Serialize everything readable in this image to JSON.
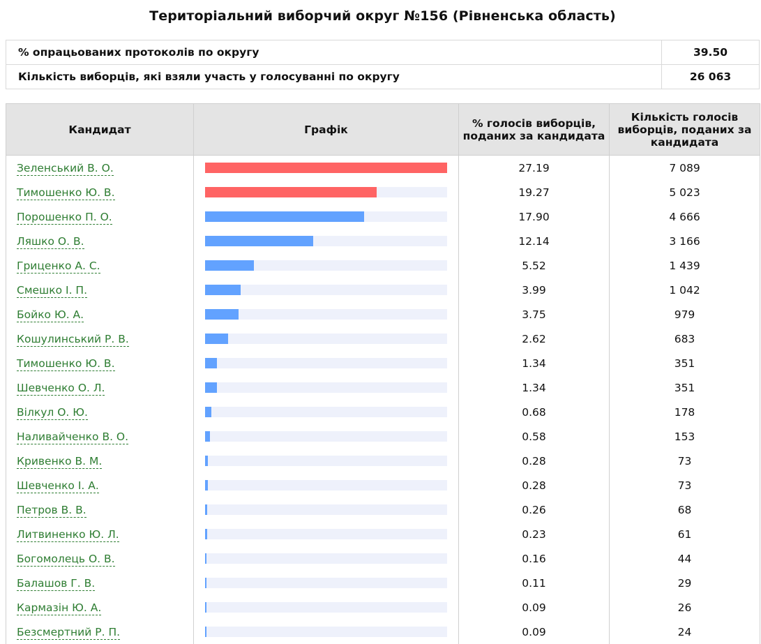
{
  "title": "Територіальний виборчий округ №156 (Рівненська область)",
  "summary": [
    {
      "label": "% опрацьованих протоколів по округу",
      "value": "39.50"
    },
    {
      "label": "Кількість виборців, які взяли участь у голосуванні по округу",
      "value": "26 063"
    }
  ],
  "headers": {
    "candidate": "Кандидат",
    "chart": "Графік",
    "percent": "% голосів виборців, поданих за кандидата",
    "count": "Кількість голосів виборців, поданих за кандидата"
  },
  "colors": {
    "leader": "#ff6464",
    "other": "#62a2ff",
    "track": "#eef1fb"
  },
  "chart_data": {
    "type": "bar",
    "categories": [
      "Зеленський В. О.",
      "Тимошенко Ю. В.",
      "Порошенко П. О.",
      "Ляшко О. В.",
      "Гриценко А. С.",
      "Смешко І. П.",
      "Бойко Ю. А.",
      "Кошулинський Р. В.",
      "Тимошенко Ю. В.",
      "Шевченко О. Л.",
      "Вілкул О. Ю.",
      "Наливайченко В. О.",
      "Кривенко В. М.",
      "Шевченко І. А.",
      "Петров В. В.",
      "Литвиненко Ю. Л.",
      "Богомолець О. В.",
      "Балашов Г. В.",
      "Кармазін Ю. А.",
      "Безсмертний Р. П."
    ],
    "values": [
      27.19,
      19.27,
      17.9,
      12.14,
      5.52,
      3.99,
      3.75,
      2.62,
      1.34,
      1.34,
      0.68,
      0.58,
      0.28,
      0.28,
      0.26,
      0.23,
      0.16,
      0.11,
      0.09,
      0.09
    ],
    "percent_labels": [
      "27.19",
      "19.27",
      "17.90",
      "12.14",
      "5.52",
      "3.99",
      "3.75",
      "2.62",
      "1.34",
      "1.34",
      "0.68",
      "0.58",
      "0.28",
      "0.28",
      "0.26",
      "0.23",
      "0.16",
      "0.11",
      "0.09",
      "0.09"
    ],
    "counts": [
      "7 089",
      "5 023",
      "4 666",
      "3 166",
      "1 439",
      "1 042",
      "979",
      "683",
      "351",
      "351",
      "178",
      "153",
      "73",
      "73",
      "68",
      "61",
      "44",
      "29",
      "26",
      "24"
    ],
    "highlighted": [
      true,
      true,
      false,
      false,
      false,
      false,
      false,
      false,
      false,
      false,
      false,
      false,
      false,
      false,
      false,
      false,
      false,
      false,
      false,
      false
    ]
  }
}
